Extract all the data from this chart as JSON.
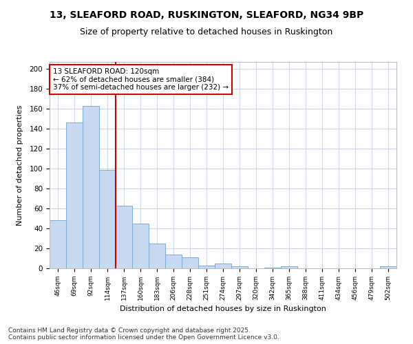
{
  "title1": "13, SLEAFORD ROAD, RUSKINGTON, SLEAFORD, NG34 9BP",
  "title2": "Size of property relative to detached houses in Ruskington",
  "xlabel": "Distribution of detached houses by size in Ruskington",
  "ylabel": "Number of detached properties",
  "categories": [
    "46sqm",
    "69sqm",
    "92sqm",
    "114sqm",
    "137sqm",
    "160sqm",
    "183sqm",
    "206sqm",
    "228sqm",
    "251sqm",
    "274sqm",
    "297sqm",
    "320sqm",
    "342sqm",
    "365sqm",
    "388sqm",
    "411sqm",
    "434sqm",
    "456sqm",
    "479sqm",
    "502sqm"
  ],
  "values": [
    48,
    146,
    163,
    99,
    63,
    45,
    25,
    14,
    11,
    3,
    5,
    2,
    0,
    1,
    2,
    0,
    0,
    0,
    0,
    0,
    2
  ],
  "bar_color": "#c8d8f0",
  "bar_edge_color": "#7badd4",
  "vline_color": "#cc0000",
  "annotation_title": "13 SLEAFORD ROAD: 120sqm",
  "annotation_line1": "← 62% of detached houses are smaller (384)",
  "annotation_line2": "37% of semi-detached houses are larger (232) →",
  "annotation_box_color": "#cc0000",
  "background_color": "#ffffff",
  "plot_bg_color": "#ffffff",
  "footer_line1": "Contains HM Land Registry data © Crown copyright and database right 2025.",
  "footer_line2": "Contains public sector information licensed under the Open Government Licence v3.0.",
  "ylim": [
    0,
    207
  ],
  "yticks": [
    0,
    20,
    40,
    60,
    80,
    100,
    120,
    140,
    160,
    180,
    200
  ]
}
